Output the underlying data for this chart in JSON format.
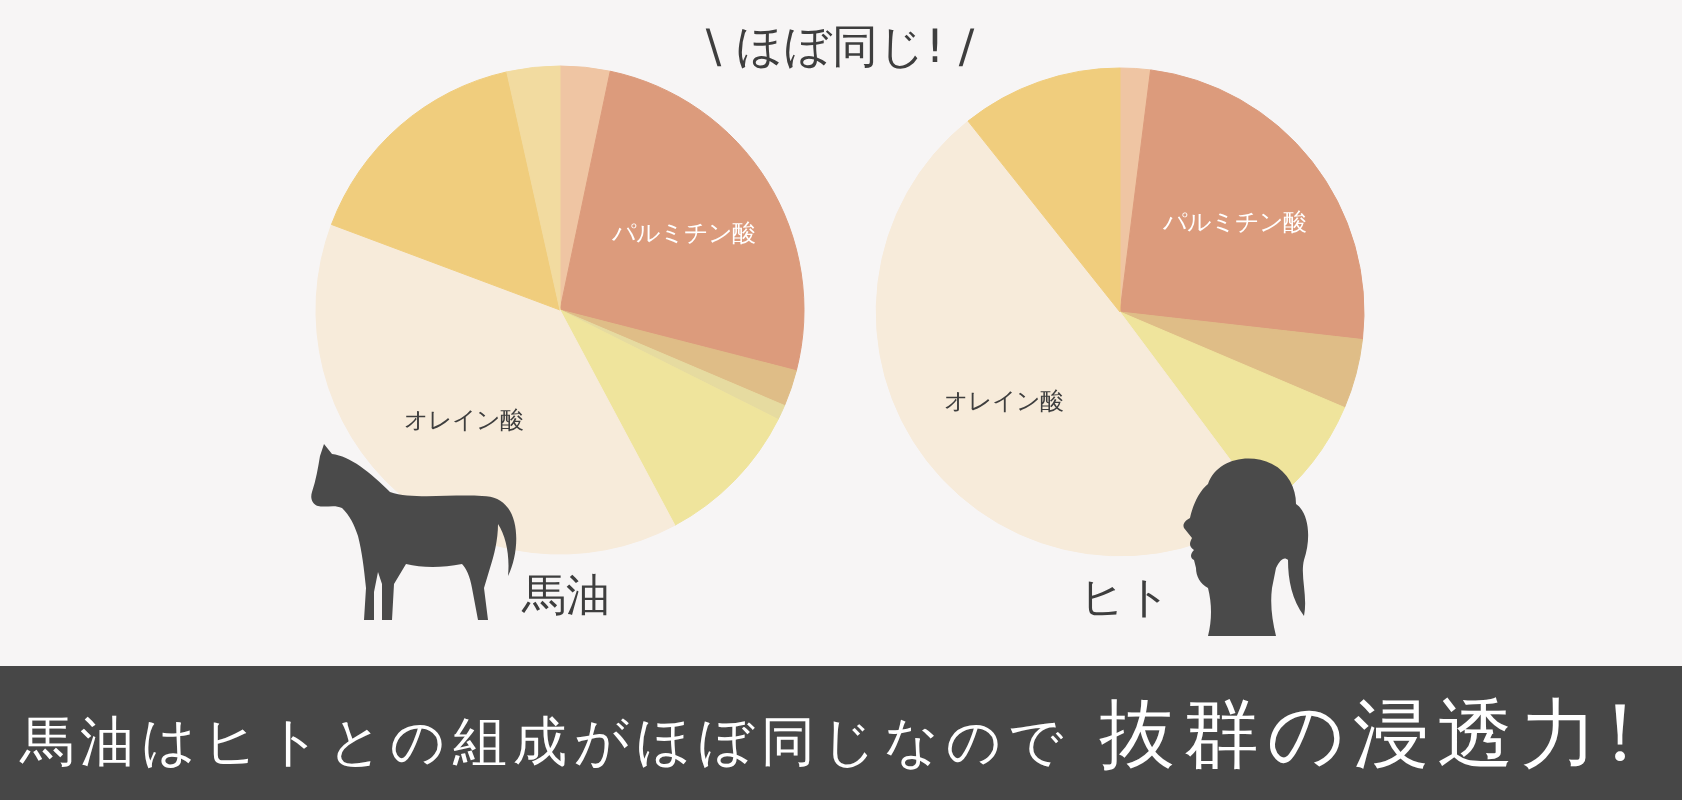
{
  "chart_data": [
    {
      "type": "other",
      "title": "\\ ほぼ同じ! /"
    },
    {
      "type": "pie",
      "title": "馬油",
      "categories": [
        null,
        "パルミチン酸",
        null,
        null,
        null,
        "オレイン酸",
        null,
        null
      ],
      "values": [
        3.3,
        25.7,
        2.4,
        1.0,
        9.8,
        38.5,
        15.8,
        3.5
      ],
      "colors": [
        "#efc5a3",
        "#dc9b7c",
        "#dfbd87",
        "#e6dba0",
        "#efe49c",
        "#f7ebda",
        "#f0cd7d",
        "#f2dba0"
      ]
    },
    {
      "type": "pie",
      "title": "ヒト",
      "categories": [
        null,
        "パルミチン酸",
        null,
        null,
        "オレイン酸",
        null
      ],
      "values": [
        2.0,
        24.8,
        4.6,
        8.4,
        49.5,
        10.7
      ],
      "colors": [
        "#efc5a3",
        "#dc9b7c",
        "#dfbd87",
        "#efe49c",
        "#f7ebda",
        "#f0cd7d"
      ]
    },
    {
      "type": "other",
      "annotations": [
        "馬油はヒトとの組成がほぼ同じなので",
        "抜群の浸透力!"
      ]
    }
  ]
}
